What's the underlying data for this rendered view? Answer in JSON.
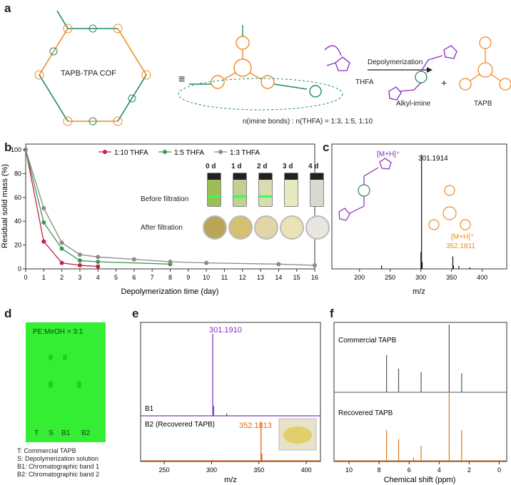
{
  "colors": {
    "orange": "#f08a24",
    "teal": "#1f8a6c",
    "purple": "#8a2bb8",
    "red": "#c8204a",
    "green": "#3b9a4e",
    "grey": "#8a8a8a",
    "tlc_green": "#33ee33",
    "b1_line": "#7a3cc0",
    "b2_line": "#e06a1a"
  },
  "panel_a": {
    "label": "a",
    "cof_name": "TAPB-TPA COF",
    "equiv": "≡",
    "thfa": "THFA",
    "arrow_label": "Depolymerization",
    "product1": "Alkyl-imine",
    "plus": "+",
    "product2": "TAPB",
    "ratio_text": "n(imine bonds) : n(THFA) = 1:3, 1:5, 1:10"
  },
  "panel_b": {
    "label": "b",
    "photo_days": [
      "0 d",
      "1 d",
      "2 d",
      "3 d",
      "4 d"
    ],
    "before_label": "Before filtration",
    "after_label": "After filtration"
  },
  "panel_c": {
    "label": "c",
    "ion1": "[M+H]⁺",
    "peak1": "301.1914",
    "ion2": "[M+H]⁺",
    "peak2": "352.1811"
  },
  "panel_d": {
    "label": "d",
    "eluent": "PE:MeOH = 3:1",
    "lanes": [
      "T",
      "S",
      "B1",
      "B2"
    ],
    "legend": [
      "T: Commercial TAPB",
      "S: Depolymerization solution",
      "B1: Chromatographic band 1",
      "B2: Chromatographic band 2"
    ]
  },
  "panel_e": {
    "label": "e",
    "peak_b1": "301.1910",
    "peak_b2": "352.1813",
    "trace1": "B1",
    "trace2": "B2 (Recovered TAPB)"
  },
  "panel_f": {
    "label": "f",
    "trace1": "Commercial TAPB",
    "trace2": "Recovered TAPB"
  },
  "chart_data": [
    {
      "id": "b",
      "type": "line",
      "xlabel": "Depolymerization time (day)",
      "ylabel": "Residual solid mass (%)",
      "xlim": [
        0,
        16
      ],
      "ylim": [
        0,
        100
      ],
      "xticks": [
        0,
        1,
        2,
        3,
        4,
        5,
        6,
        7,
        8,
        9,
        10,
        11,
        12,
        13,
        14,
        15,
        16
      ],
      "yticks": [
        0,
        20,
        40,
        60,
        80,
        100
      ],
      "legend_position": "top",
      "series": [
        {
          "name": "1:10 THFA",
          "color": "#c8204a",
          "x": [
            0,
            1,
            2,
            3,
            4
          ],
          "y": [
            100,
            23,
            5,
            3,
            2
          ]
        },
        {
          "name": "1:5 THFA",
          "color": "#3b9a4e",
          "x": [
            0,
            1,
            2,
            3,
            4,
            8
          ],
          "y": [
            100,
            39,
            17,
            7,
            6,
            4
          ]
        },
        {
          "name": "1:3 THFA",
          "color": "#8a8a8a",
          "x": [
            0,
            1,
            2,
            3,
            4,
            6,
            8,
            10,
            14,
            16
          ],
          "y": [
            100,
            51,
            22,
            12,
            10,
            8,
            6,
            5,
            4,
            3
          ]
        }
      ]
    },
    {
      "id": "c",
      "type": "bar",
      "xlabel": "m/z",
      "xlim": [
        155,
        440
      ],
      "xticks": [
        200,
        250,
        300,
        350,
        400
      ],
      "peaks": [
        {
          "x": 236,
          "y": 0.03
        },
        {
          "x": 300.2,
          "y": 0.15
        },
        {
          "x": 301.19,
          "y": 1.0
        },
        {
          "x": 302.2,
          "y": 0.06
        },
        {
          "x": 352.18,
          "y": 0.11
        },
        {
          "x": 353.2,
          "y": 0.03
        },
        {
          "x": 362,
          "y": 0.025
        },
        {
          "x": 380,
          "y": 0.015
        }
      ]
    },
    {
      "id": "e",
      "type": "bar",
      "xlabel": "m/z",
      "xlim": [
        225,
        415
      ],
      "xticks": [
        250,
        300,
        350,
        400
      ],
      "series": [
        {
          "name": "B1",
          "color": "#7a3cc0",
          "peaks": [
            {
              "x": 301.19,
              "y": 1.0
            },
            {
              "x": 302.2,
              "y": 0.12
            },
            {
              "x": 316,
              "y": 0.03
            }
          ]
        },
        {
          "name": "B2 (Recovered TAPB)",
          "color": "#e06a1a",
          "peaks": [
            {
              "x": 352.18,
              "y": 1.0
            },
            {
              "x": 353.2,
              "y": 0.18
            },
            {
              "x": 301,
              "y": 0.02
            }
          ]
        }
      ]
    },
    {
      "id": "f",
      "type": "line",
      "xlabel": "Chemical shift (ppm)",
      "xlim": [
        11,
        -0.5
      ],
      "xticks": [
        10,
        8,
        6,
        4,
        2,
        0
      ],
      "series": [
        {
          "name": "Commercial TAPB",
          "color": "#555555",
          "peaks": [
            {
              "x": 7.5,
              "y": 0.55
            },
            {
              "x": 6.7,
              "y": 0.35
            },
            {
              "x": 5.2,
              "y": 0.3
            },
            {
              "x": 3.33,
              "y": 1.0
            },
            {
              "x": 2.5,
              "y": 0.28
            }
          ]
        },
        {
          "name": "Recovered TAPB",
          "color": "#e07a1a",
          "peaks": [
            {
              "x": 7.5,
              "y": 0.45
            },
            {
              "x": 6.7,
              "y": 0.32
            },
            {
              "x": 5.2,
              "y": 0.22
            },
            {
              "x": 3.33,
              "y": 1.0
            },
            {
              "x": 2.5,
              "y": 0.45
            },
            {
              "x": 5.7,
              "y": 0.05
            }
          ]
        }
      ]
    }
  ]
}
